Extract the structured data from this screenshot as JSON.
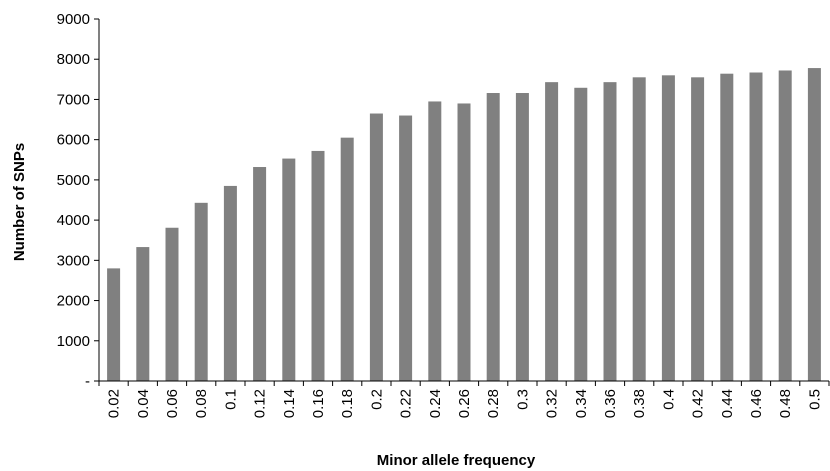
{
  "chart_data": {
    "type": "bar",
    "xlabel": "Minor allele frequency",
    "ylabel": "Number of SNPs",
    "categories": [
      "0.02",
      "0.04",
      "0.06",
      "0.08",
      "0.1",
      "0.12",
      "0.14",
      "0.16",
      "0.18",
      "0.2",
      "0.22",
      "0.24",
      "0.26",
      "0.28",
      "0.3",
      "0.32",
      "0.34",
      "0.36",
      "0.38",
      "0.4",
      "0.42",
      "0.44",
      "0.46",
      "0.48",
      "0.5"
    ],
    "values": [
      2800,
      3330,
      3810,
      4430,
      4850,
      5320,
      5530,
      5720,
      6050,
      6650,
      6600,
      6950,
      6900,
      7160,
      7160,
      7430,
      7290,
      7430,
      7550,
      7600,
      7550,
      7640,
      7670,
      7720,
      7780
    ],
    "ylim": [
      0,
      9000
    ],
    "y_ticks": [
      0,
      1000,
      2000,
      3000,
      4000,
      5000,
      6000,
      7000,
      8000,
      9000
    ],
    "y_tick_labels": [
      "-",
      "1000",
      "2000",
      "3000",
      "4000",
      "5000",
      "6000",
      "7000",
      "8000",
      "9000"
    ],
    "bar_color": "#808080",
    "axis_color": "#000000",
    "grid": false,
    "legend": "none"
  }
}
